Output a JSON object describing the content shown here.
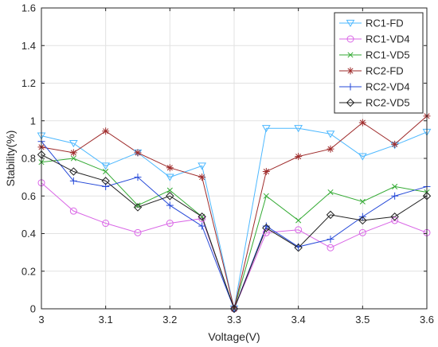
{
  "chart_data": {
    "type": "line",
    "xlabel": "Voltage(V)",
    "ylabel": "Stability(%)",
    "xlim": [
      3,
      3.6
    ],
    "ylim": [
      0,
      1.6
    ],
    "xticks": [
      "3",
      "3.1",
      "3.2",
      "3.3",
      "3.4",
      "3.5",
      "3.6"
    ],
    "yticks": [
      "0",
      "0.2",
      "0.4",
      "0.6",
      "0.8",
      "1",
      "1.2",
      "1.4",
      "1.6"
    ],
    "grid": true,
    "legend_position": "top-right",
    "x": [
      3.0,
      3.05,
      3.1,
      3.15,
      3.2,
      3.25,
      3.3,
      3.35,
      3.4,
      3.45,
      3.5,
      3.55,
      3.6
    ],
    "series": [
      {
        "name": "RC1-FD",
        "color": "#4db8ff",
        "marker": "triangle-down",
        "values": [
          0.92,
          0.88,
          0.76,
          0.83,
          0.7,
          0.76,
          0.0,
          0.96,
          0.96,
          0.93,
          0.81,
          0.87,
          0.94
        ]
      },
      {
        "name": "RC1-VD4",
        "color": "#d966e6",
        "marker": "circle",
        "values": [
          0.67,
          0.52,
          0.455,
          0.405,
          0.455,
          0.48,
          0.0,
          0.405,
          0.42,
          0.325,
          0.405,
          0.47,
          0.405
        ]
      },
      {
        "name": "RC1-VD5",
        "color": "#33aa33",
        "marker": "x",
        "values": [
          0.78,
          0.8,
          0.73,
          0.55,
          0.63,
          0.49,
          0.0,
          0.6,
          0.47,
          0.62,
          0.57,
          0.65,
          0.62
        ]
      },
      {
        "name": "RC2-FD",
        "color": "#9e2a2a",
        "marker": "star",
        "values": [
          0.86,
          0.83,
          0.945,
          0.83,
          0.75,
          0.7,
          0.0,
          0.73,
          0.81,
          0.85,
          0.99,
          0.875,
          1.025
        ]
      },
      {
        "name": "RC2-VD4",
        "color": "#2448d8",
        "marker": "plus",
        "values": [
          0.89,
          0.68,
          0.65,
          0.7,
          0.55,
          0.44,
          0.0,
          0.44,
          0.33,
          0.37,
          0.49,
          0.6,
          0.65
        ]
      },
      {
        "name": "RC2-VD5",
        "color": "#222222",
        "marker": "diamond",
        "values": [
          0.82,
          0.73,
          0.68,
          0.54,
          0.6,
          0.49,
          0.0,
          0.43,
          0.325,
          0.5,
          0.47,
          0.49,
          0.6
        ]
      }
    ]
  }
}
